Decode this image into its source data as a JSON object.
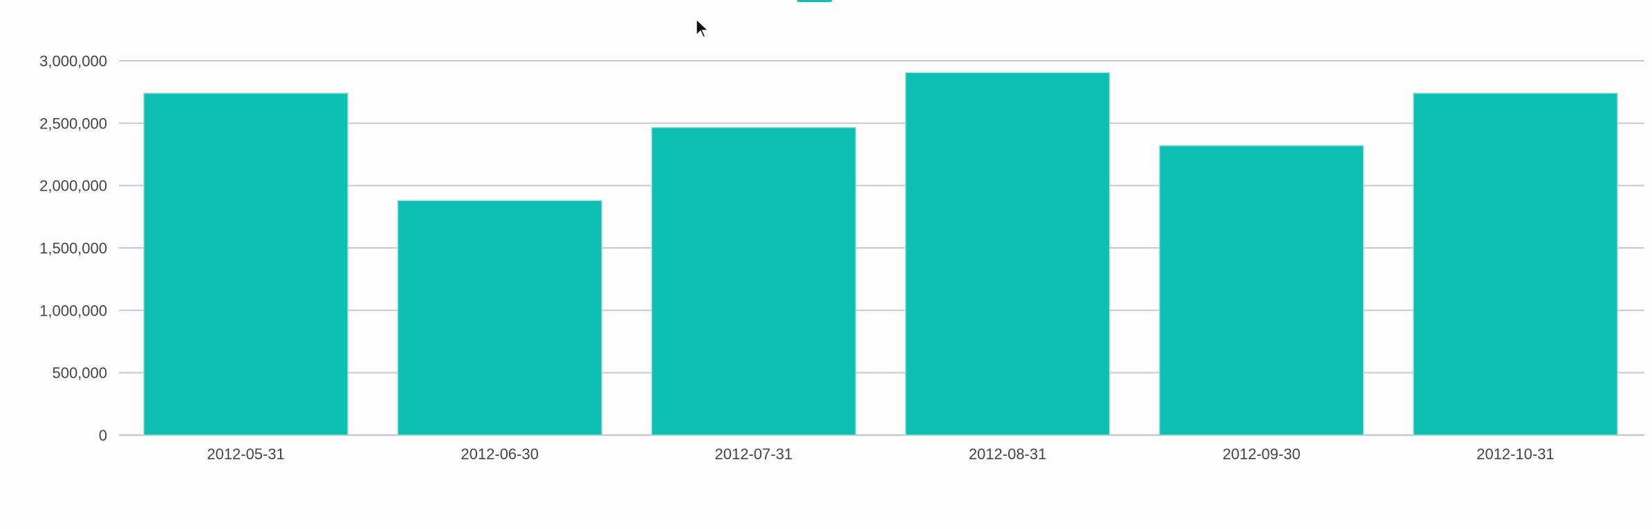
{
  "chart_data": {
    "type": "bar",
    "title": "",
    "xlabel": "",
    "ylabel": "",
    "categories": [
      "2012-05-31",
      "2012-06-30",
      "2012-07-31",
      "2012-08-31",
      "2012-09-30",
      "2012-10-31"
    ],
    "series": [
      {
        "values": [
          2740000,
          1880000,
          2465000,
          2905000,
          2320000,
          2740000
        ],
        "color": "#0bbfb2"
      }
    ],
    "ylim": [
      0,
      3000000
    ],
    "yticks": [
      0,
      500000,
      1000000,
      1500000,
      2000000,
      2500000,
      3000000
    ],
    "ytick_labels": [
      "0",
      "500,000",
      "1,000,000",
      "1,500,000",
      "2,000,000",
      "2,500,000",
      "3,000,000"
    ],
    "grid": true,
    "legend": "top-center"
  },
  "colors": {
    "bar": "#0bbfb2",
    "grid": "#c8c8cc",
    "axis_text": "#444444",
    "background": "#fdfdfd"
  },
  "icons": {
    "cursor": "mouse-pointer-icon"
  }
}
